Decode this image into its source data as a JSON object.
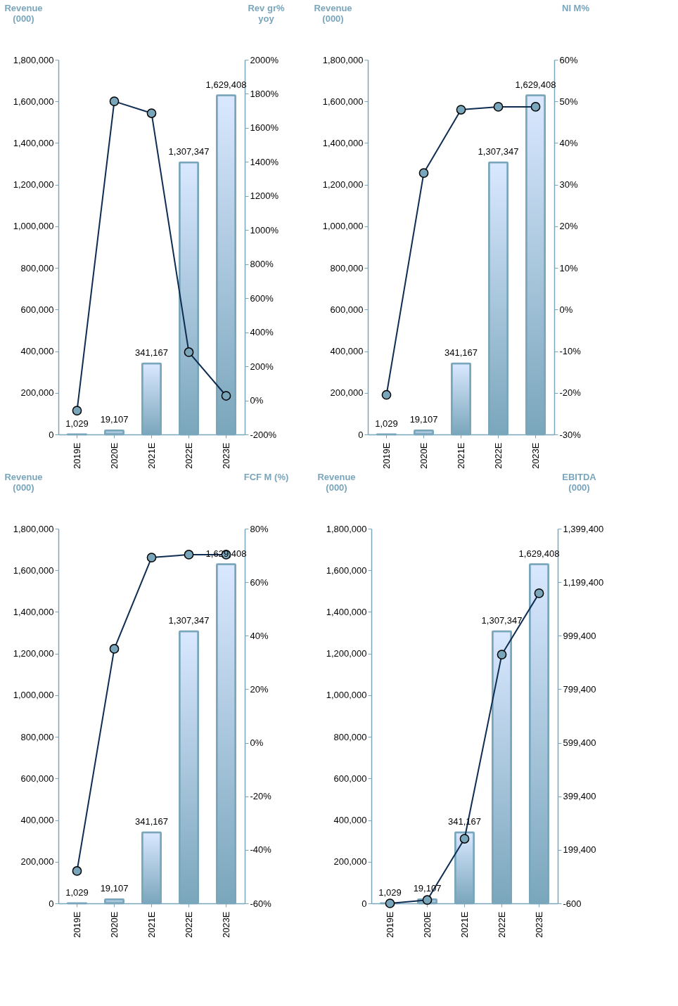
{
  "chart_data": [
    {
      "type": "bar",
      "categories": [
        "2019E",
        "2020E",
        "2021E",
        "2022E",
        "2023E"
      ],
      "ylabel": "Revenue\n(000)",
      "y2label": "Rev gr%\nyoy",
      "ylim": [
        0,
        1800000
      ],
      "yticks": [
        {
          "value": 0,
          "label": "0"
        },
        {
          "value": 200000,
          "label": "200,000"
        },
        {
          "value": 400000,
          "label": "400,000"
        },
        {
          "value": 600000,
          "label": "600,000"
        },
        {
          "value": 800000,
          "label": "800,000"
        },
        {
          "value": 1000000,
          "label": "1,000,000"
        },
        {
          "value": 1200000,
          "label": "1,200,000"
        },
        {
          "value": 1400000,
          "label": "1,400,000"
        },
        {
          "value": 1600000,
          "label": "1,600,000"
        },
        {
          "value": 1800000,
          "label": "1,800,000"
        }
      ],
      "y2lim": [
        -200,
        2000
      ],
      "y2ticks": [
        {
          "value": -200,
          "label": "-200%"
        },
        {
          "value": 0,
          "label": "0%"
        },
        {
          "value": 200,
          "label": "200%"
        },
        {
          "value": 400,
          "label": "400%"
        },
        {
          "value": 600,
          "label": "600%"
        },
        {
          "value": 800,
          "label": "800%"
        },
        {
          "value": 1000,
          "label": "1000%"
        },
        {
          "value": 1200,
          "label": "1200%"
        },
        {
          "value": 1400,
          "label": "1400%"
        },
        {
          "value": 1600,
          "label": "1600%"
        },
        {
          "value": 1800,
          "label": "1800%"
        },
        {
          "value": 2000,
          "label": "2000%"
        }
      ],
      "marker": "circle",
      "series": [
        {
          "type": "bar",
          "color": "#7aa6bb",
          "values": [
            1029,
            19107,
            341167,
            1307347,
            1629408
          ],
          "value_labels": [
            "1,029",
            "19,107",
            "341,167",
            "1,307,347",
            "1,629,408"
          ]
        },
        {
          "type": "line",
          "axis": "y2",
          "color": "#0f2d52",
          "values": [
            -60,
            1756,
            1686,
            283,
            27
          ]
        }
      ]
    },
    {
      "type": "bar",
      "categories": [
        "2019E",
        "2020E",
        "2021E",
        "2022E",
        "2023E"
      ],
      "ylabel": "Revenue\n(000)",
      "y2label": "NI M%",
      "ylim": [
        0,
        1800000
      ],
      "yticks": [
        {
          "value": 0,
          "label": "0"
        },
        {
          "value": 200000,
          "label": "200,000"
        },
        {
          "value": 400000,
          "label": "400,000"
        },
        {
          "value": 600000,
          "label": "600,000"
        },
        {
          "value": 800000,
          "label": "800,000"
        },
        {
          "value": 1000000,
          "label": "1,000,000"
        },
        {
          "value": 1200000,
          "label": "1,200,000"
        },
        {
          "value": 1400000,
          "label": "1,400,000"
        },
        {
          "value": 1600000,
          "label": "1,600,000"
        },
        {
          "value": 1800000,
          "label": "1,800,000"
        }
      ],
      "y2lim": [
        -30,
        60
      ],
      "y2ticks": [
        {
          "value": -30,
          "label": "-30%"
        },
        {
          "value": -20,
          "label": "-20%"
        },
        {
          "value": -10,
          "label": "-10%"
        },
        {
          "value": 0,
          "label": "0%"
        },
        {
          "value": 10,
          "label": "10%"
        },
        {
          "value": 20,
          "label": "20%"
        },
        {
          "value": 30,
          "label": "30%"
        },
        {
          "value": 40,
          "label": "40%"
        },
        {
          "value": 50,
          "label": "50%"
        },
        {
          "value": 60,
          "label": "60%"
        }
      ],
      "marker": "circle",
      "series": [
        {
          "type": "bar",
          "color": "#7aa6bb",
          "values": [
            1029,
            19107,
            341167,
            1307347,
            1629408
          ],
          "value_labels": [
            "1,029",
            "19,107",
            "341,167",
            "1,307,347",
            "1,629,408"
          ]
        },
        {
          "type": "line",
          "axis": "y2",
          "color": "#0f2d52",
          "values": [
            -20.5,
            32.8,
            48,
            48.7,
            48.7
          ]
        }
      ]
    },
    {
      "type": "bar",
      "categories": [
        "2019E",
        "2020E",
        "2021E",
        "2022E",
        "2023E"
      ],
      "ylabel": "Revenue\n(000)",
      "y2label": "FCF M (%)",
      "ylim": [
        0,
        1800000
      ],
      "yticks": [
        {
          "value": 0,
          "label": "0"
        },
        {
          "value": 200000,
          "label": "200,000"
        },
        {
          "value": 400000,
          "label": "400,000"
        },
        {
          "value": 600000,
          "label": "600,000"
        },
        {
          "value": 800000,
          "label": "800,000"
        },
        {
          "value": 1000000,
          "label": "1,000,000"
        },
        {
          "value": 1200000,
          "label": "1,200,000"
        },
        {
          "value": 1400000,
          "label": "1,400,000"
        },
        {
          "value": 1600000,
          "label": "1,600,000"
        },
        {
          "value": 1800000,
          "label": "1,800,000"
        }
      ],
      "y2lim": [
        -60,
        80
      ],
      "y2ticks": [
        {
          "value": -60,
          "label": "-60%"
        },
        {
          "value": -40,
          "label": "-40%"
        },
        {
          "value": -20,
          "label": "-20%"
        },
        {
          "value": 0,
          "label": "0%"
        },
        {
          "value": 20,
          "label": "20%"
        },
        {
          "value": 40,
          "label": "40%"
        },
        {
          "value": 60,
          "label": "60%"
        },
        {
          "value": 80,
          "label": "80%"
        }
      ],
      "marker": "circle",
      "series": [
        {
          "type": "bar",
          "color": "#7aa6bb",
          "values": [
            1029,
            19107,
            341167,
            1307347,
            1629408
          ],
          "value_labels": [
            "1,029",
            "19,107",
            "341,167",
            "1,307,347",
            "1,629,408"
          ]
        },
        {
          "type": "line",
          "axis": "y2",
          "color": "#0f2d52",
          "values": [
            -47.9,
            35.1,
            69.2,
            70.3,
            70.3
          ]
        }
      ]
    },
    {
      "type": "bar",
      "categories": [
        "2019E",
        "2020E",
        "2021E",
        "2022E",
        "2023E"
      ],
      "ylabel": "Revenue\n(000)",
      "y2label": "EBITDA\n(000)",
      "ylim": [
        0,
        1800000
      ],
      "yticks": [
        {
          "value": 0,
          "label": "0"
        },
        {
          "value": 200000,
          "label": "200,000"
        },
        {
          "value": 400000,
          "label": "400,000"
        },
        {
          "value": 600000,
          "label": "600,000"
        },
        {
          "value": 800000,
          "label": "800,000"
        },
        {
          "value": 1000000,
          "label": "1,000,000"
        },
        {
          "value": 1200000,
          "label": "1,200,000"
        },
        {
          "value": 1400000,
          "label": "1,400,000"
        },
        {
          "value": 1600000,
          "label": "1,600,000"
        },
        {
          "value": 1800000,
          "label": "1,800,000"
        }
      ],
      "y2lim": [
        -600,
        1399400
      ],
      "y2ticks": [
        {
          "value": -600,
          "label": "-600"
        },
        {
          "value": 199400,
          "label": "199,400"
        },
        {
          "value": 399400,
          "label": "399,400"
        },
        {
          "value": 599400,
          "label": "599,400"
        },
        {
          "value": 799400,
          "label": "799,400"
        },
        {
          "value": 999400,
          "label": "999,400"
        },
        {
          "value": 1199400,
          "label": "1,199,400"
        },
        {
          "value": 1399400,
          "label": "1,399,400"
        }
      ],
      "marker": "circle",
      "series": [
        {
          "type": "bar",
          "color": "#7aa6bb",
          "values": [
            1029,
            19107,
            341167,
            1307347,
            1629408
          ],
          "value_labels": [
            "1,029",
            "19,107",
            "341,167",
            "1,307,347",
            "1,629,408"
          ]
        },
        {
          "type": "line",
          "axis": "y2",
          "color": "#0f2d52",
          "values": [
            -600,
            12000,
            241000,
            929000,
            1158000
          ]
        }
      ]
    }
  ]
}
